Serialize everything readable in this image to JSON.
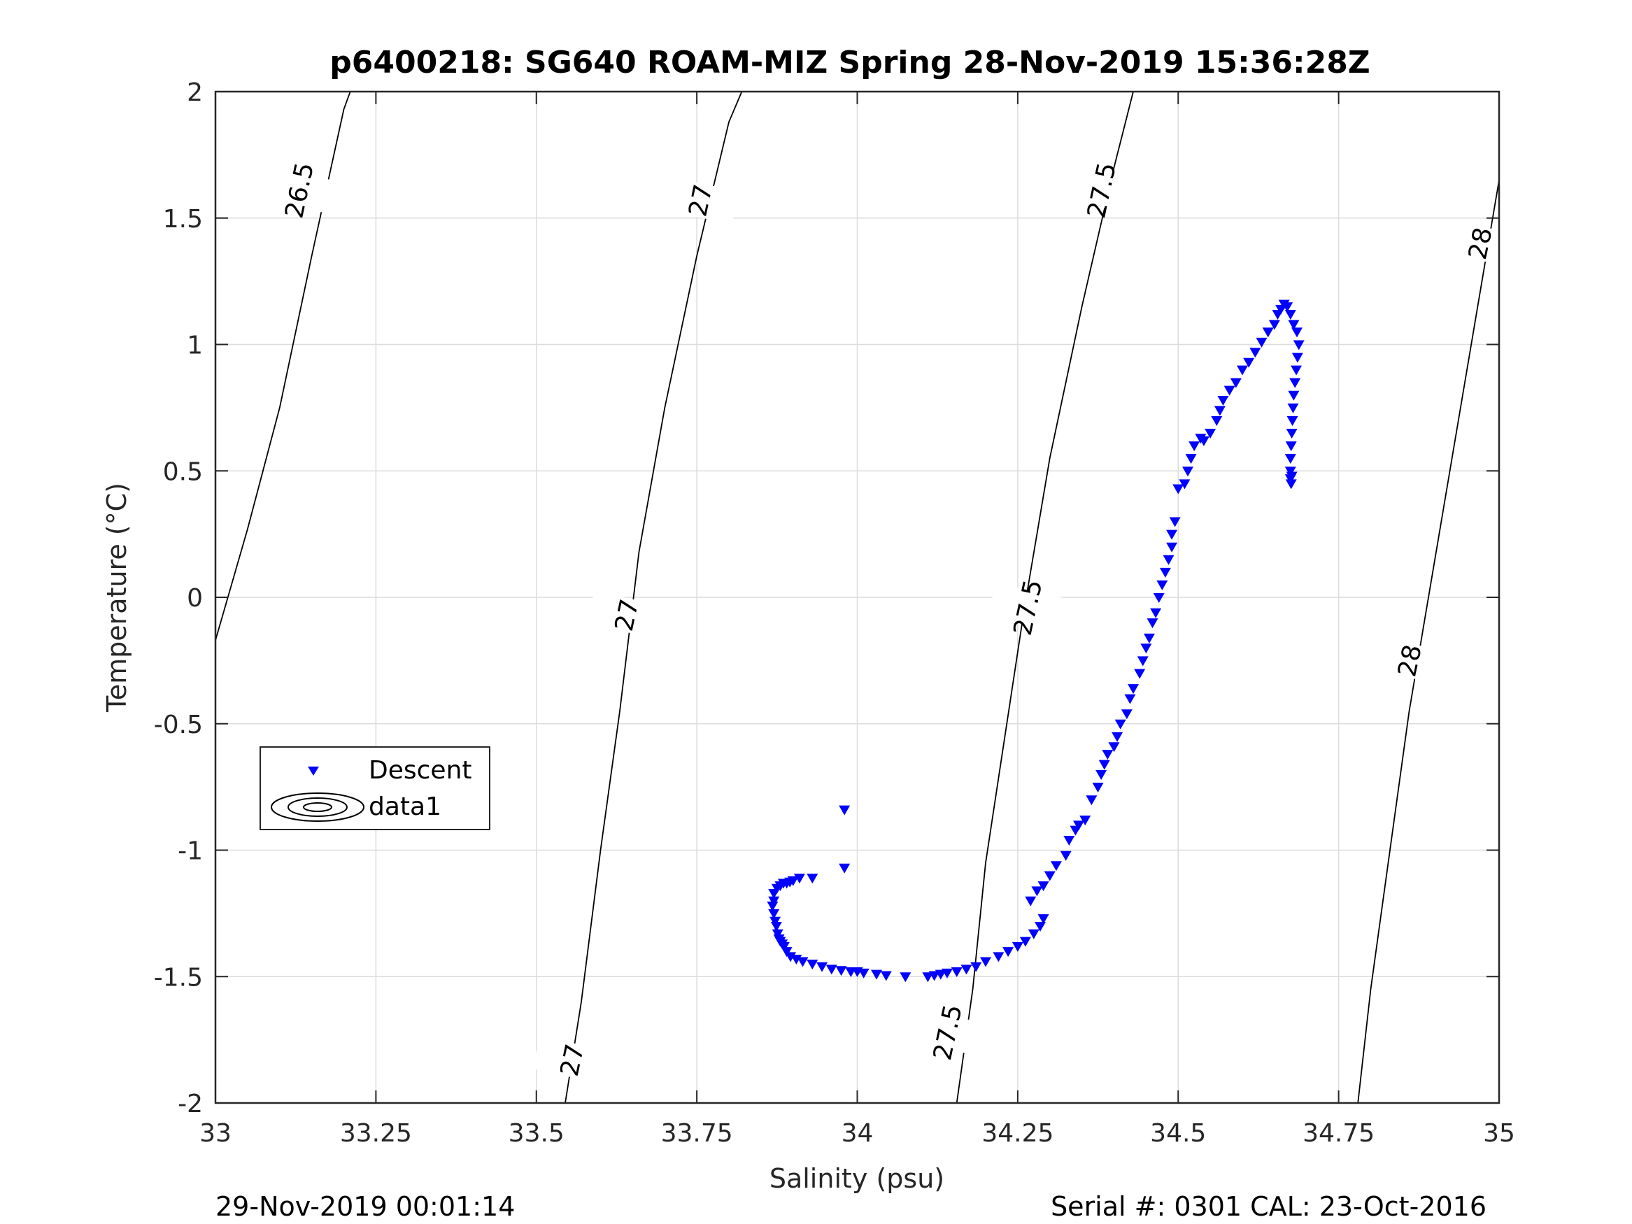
{
  "chart_data": {
    "type": "scatter",
    "title": "p6400218: SG640 ROAM-MIZ Spring 28-Nov-2019 15:36:28Z",
    "xlabel": "Salinity (psu)",
    "ylabel": "Temperature (°C)",
    "xlim": [
      33,
      35
    ],
    "ylim": [
      -2,
      2
    ],
    "xticks": [
      33,
      33.25,
      33.5,
      33.75,
      34,
      34.25,
      34.5,
      34.75,
      35
    ],
    "xtick_labels": [
      "33",
      "33.25",
      "33.5",
      "33.75",
      "34",
      "34.25",
      "34.5",
      "34.75",
      "35"
    ],
    "yticks": [
      -2,
      -1.5,
      -1,
      -0.5,
      0,
      0.5,
      1,
      1.5,
      2
    ],
    "ytick_labels": [
      "-2",
      "-1.5",
      "-1",
      "-0.5",
      "0",
      "0.5",
      "1",
      "1.5",
      "2"
    ],
    "grid": true,
    "legend": {
      "placement": "lower-left",
      "entries": [
        {
          "label": "Descent",
          "marker": "down-triangle",
          "color": "#0000ff"
        },
        {
          "label": "data1",
          "marker": "contour-ellipses",
          "color": "#000000"
        }
      ]
    },
    "contours": [
      {
        "level": "26.5",
        "points": [
          [
            33.0,
            -0.17
          ],
          [
            33.05,
            0.27
          ],
          [
            33.1,
            0.75
          ],
          [
            33.15,
            1.35
          ],
          [
            33.2,
            1.93
          ],
          [
            33.21,
            2.0
          ]
        ],
        "labels": [
          [
            33.13,
            1.61
          ]
        ]
      },
      {
        "level": "27",
        "points": [
          [
            33.545,
            -2.0
          ],
          [
            33.57,
            -1.6
          ],
          [
            33.6,
            -1.0
          ],
          [
            33.63,
            -0.45
          ],
          [
            33.66,
            0.18
          ],
          [
            33.7,
            0.75
          ],
          [
            33.75,
            1.35
          ],
          [
            33.8,
            1.88
          ],
          [
            33.82,
            2.0
          ]
        ],
        "labels": [
          [
            33.64,
            -0.07
          ],
          [
            33.555,
            -1.83
          ],
          [
            33.755,
            1.57
          ]
        ]
      },
      {
        "level": "27.5",
        "points": [
          [
            34.155,
            -2.0
          ],
          [
            34.18,
            -1.55
          ],
          [
            34.2,
            -1.05
          ],
          [
            34.23,
            -0.55
          ],
          [
            34.26,
            -0.05
          ],
          [
            34.3,
            0.55
          ],
          [
            34.35,
            1.15
          ],
          [
            34.4,
            1.7
          ],
          [
            34.43,
            2.0
          ]
        ],
        "labels": [
          [
            34.14,
            -1.72
          ],
          [
            34.265,
            -0.04
          ],
          [
            34.38,
            1.61
          ]
        ]
      },
      {
        "level": "28",
        "points": [
          [
            34.78,
            -2.0
          ],
          [
            34.8,
            -1.55
          ],
          [
            34.83,
            -1.0
          ],
          [
            34.86,
            -0.45
          ],
          [
            34.9,
            0.15
          ],
          [
            34.94,
            0.75
          ],
          [
            34.98,
            1.35
          ],
          [
            35.0,
            1.65
          ]
        ],
        "labels": [
          [
            34.86,
            -0.25
          ],
          [
            34.97,
            1.4
          ]
        ]
      }
    ],
    "series": [
      {
        "name": "Descent",
        "marker": "down-triangle",
        "color": "#0000ff",
        "x": [
          33.98,
          33.98,
          33.93,
          33.91,
          33.9,
          33.895,
          33.89,
          33.885,
          33.88,
          33.875,
          33.87,
          33.87,
          33.868,
          33.87,
          33.872,
          33.874,
          33.876,
          33.878,
          33.88,
          33.883,
          33.886,
          33.89,
          33.896,
          33.905,
          33.915,
          33.93,
          33.945,
          33.96,
          33.975,
          33.99,
          34.0,
          34.01,
          34.03,
          34.045,
          34.075,
          34.11,
          34.12,
          34.13,
          34.14,
          34.155,
          34.17,
          34.185,
          34.2,
          34.22,
          34.235,
          34.25,
          34.262,
          34.275,
          34.285,
          34.29,
          34.27,
          34.28,
          34.29,
          34.3,
          34.31,
          34.325,
          34.33,
          34.34,
          34.345,
          34.355,
          34.365,
          34.375,
          34.38,
          34.385,
          34.39,
          34.4,
          34.405,
          34.41,
          34.42,
          34.425,
          34.43,
          34.44,
          34.445,
          34.45,
          34.455,
          34.46,
          34.465,
          34.47,
          34.475,
          34.48,
          34.485,
          34.49,
          34.49,
          34.495,
          34.5,
          34.51,
          34.515,
          34.52,
          34.525,
          34.535,
          34.54,
          34.55,
          34.56,
          34.565,
          34.57,
          34.58,
          34.59,
          34.6,
          34.61,
          34.62,
          34.63,
          34.64,
          34.65,
          34.655,
          34.66,
          34.665,
          34.67,
          34.675,
          34.68,
          34.685,
          34.688,
          34.686,
          34.684,
          34.682,
          34.68,
          34.679,
          34.678,
          34.677,
          34.676,
          34.675,
          34.675,
          34.675,
          34.676,
          34.677
        ],
        "y": [
          -0.84,
          -1.07,
          -1.11,
          -1.11,
          -1.12,
          -1.125,
          -1.13,
          -1.13,
          -1.14,
          -1.15,
          -1.17,
          -1.2,
          -1.22,
          -1.25,
          -1.28,
          -1.3,
          -1.33,
          -1.35,
          -1.36,
          -1.37,
          -1.38,
          -1.4,
          -1.42,
          -1.43,
          -1.44,
          -1.45,
          -1.46,
          -1.47,
          -1.475,
          -1.48,
          -1.48,
          -1.485,
          -1.49,
          -1.495,
          -1.5,
          -1.5,
          -1.495,
          -1.49,
          -1.485,
          -1.48,
          -1.47,
          -1.46,
          -1.44,
          -1.42,
          -1.4,
          -1.38,
          -1.36,
          -1.33,
          -1.3,
          -1.27,
          -1.2,
          -1.16,
          -1.14,
          -1.1,
          -1.06,
          -1.02,
          -0.96,
          -0.92,
          -0.9,
          -0.88,
          -0.8,
          -0.75,
          -0.7,
          -0.66,
          -0.62,
          -0.59,
          -0.55,
          -0.5,
          -0.46,
          -0.4,
          -0.36,
          -0.3,
          -0.25,
          -0.2,
          -0.16,
          -0.1,
          -0.06,
          0.0,
          0.05,
          0.1,
          0.15,
          0.2,
          0.25,
          0.3,
          0.43,
          0.45,
          0.5,
          0.55,
          0.6,
          0.63,
          0.62,
          0.65,
          0.7,
          0.74,
          0.78,
          0.82,
          0.85,
          0.9,
          0.93,
          0.97,
          1.01,
          1.05,
          1.08,
          1.12,
          1.14,
          1.16,
          1.15,
          1.12,
          1.08,
          1.05,
          1.0,
          0.95,
          0.9,
          0.85,
          0.8,
          0.75,
          0.7,
          0.65,
          0.6,
          0.55,
          0.5,
          0.47,
          0.45,
          0.48
        ]
      }
    ]
  },
  "footer": {
    "left": "29-Nov-2019 00:01:14",
    "right": "Serial #: 0301  CAL: 23-Oct-2016"
  }
}
